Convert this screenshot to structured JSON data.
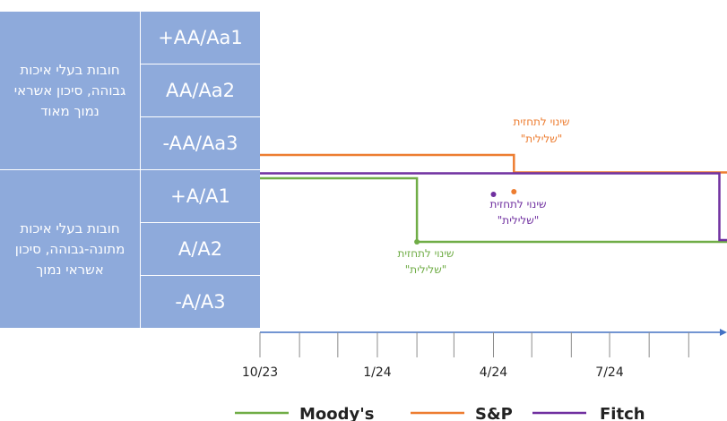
{
  "chart_data": {
    "type": "line",
    "title": "",
    "xlabel": "",
    "ylabel": "",
    "x_ticks": [
      "10/23",
      "1/24",
      "4/24",
      "7/24"
    ],
    "xlim": [
      "2023-10-01",
      "2024-10-01"
    ],
    "y_ratings": [
      "+AA/Aa1",
      "AA/Aa2",
      "-AA/Aa3",
      "+A/A1",
      "A/A2",
      "-A/A3"
    ],
    "y_groups": [
      {
        "label": "חובות בעלי איכות גבוהה, סיכון אשראי נמוך מאוד"
      },
      {
        "label": "חובות בעלי איכות מתונה-גבוהה, סיכון אשראי נמוך"
      }
    ],
    "series": [
      {
        "name": "Moody's",
        "color": "#70ad47",
        "points": [
          [
            "2023-10-01",
            "+A/A1"
          ],
          [
            "2024-02-01",
            "+A/A1"
          ],
          [
            "2024-02-01",
            "A/A2"
          ],
          [
            "2024-10-01",
            "A/A2"
          ]
        ]
      },
      {
        "name": "S&P",
        "color": "#ed7d31",
        "points": [
          [
            "2023-10-01",
            "-AA/Aa3"
          ],
          [
            "2024-04-17",
            "-AA/Aa3"
          ],
          [
            "2024-04-17",
            "+A/A1"
          ],
          [
            "2024-10-01",
            "+A/A1"
          ]
        ]
      },
      {
        "name": "Fitch",
        "color": "#7030a0",
        "points": [
          [
            "2023-10-01",
            "+A/A1"
          ],
          [
            "2024-09-25",
            "+A/A1"
          ],
          [
            "2024-09-25",
            "A/A2"
          ],
          [
            "2024-10-01",
            "A/A2"
          ]
        ]
      }
    ],
    "annotations": [
      {
        "text": "שינוי לתחזית \"שלילית\"",
        "color": "#ed7d31",
        "series": "S&P",
        "date": "2024-04-17"
      },
      {
        "text": "שינוי לתחזית \"שלילית\"",
        "color": "#7030a0",
        "series": "Fitch",
        "date": "2024-04-01"
      },
      {
        "text": "שינוי לתחזית \"שלילית\"",
        "color": "#70ad47",
        "series": "Moody's",
        "date": "2024-02-01"
      }
    ],
    "legend_position": "bottom",
    "grid": false
  }
}
